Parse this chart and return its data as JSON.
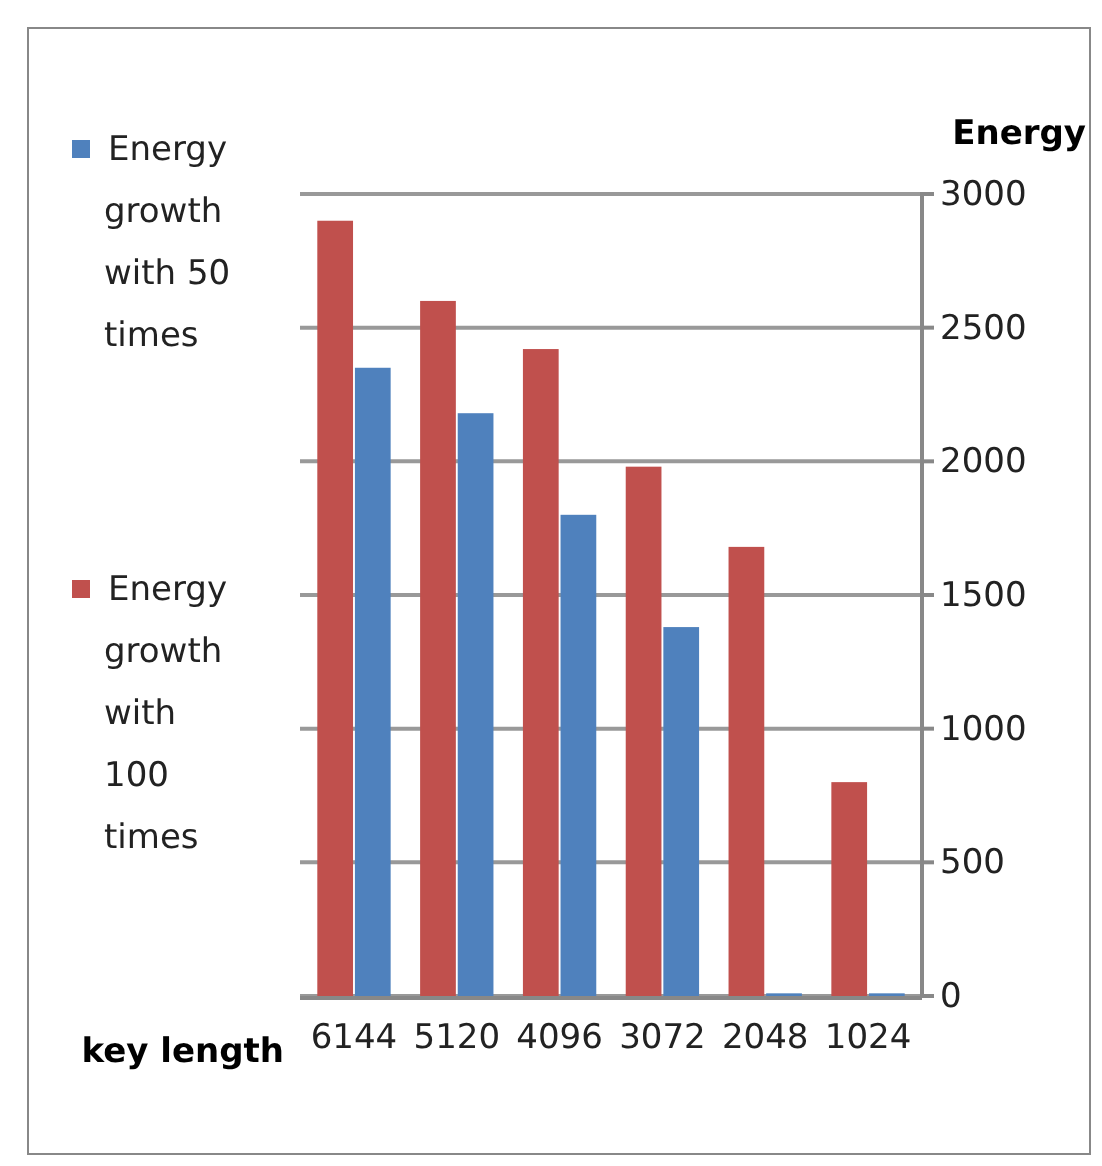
{
  "chart_data": {
    "type": "bar",
    "xlabel": "key length",
    "ylabel": "Energy",
    "categories": [
      "6144",
      "5120",
      "4096",
      "3072",
      "2048",
      "1024"
    ],
    "series": [
      {
        "name": "Energy growth with 100 times",
        "color": "#c0504d",
        "values": [
          2900,
          2600,
          2420,
          1980,
          1680,
          800
        ]
      },
      {
        "name": "Energy growth with 50 times",
        "color": "#4f81bd",
        "values": [
          2350,
          2180,
          1800,
          1380,
          10,
          10
        ]
      }
    ],
    "ylim": [
      0,
      3000
    ],
    "yticks": [
      0,
      500,
      1000,
      1500,
      2000,
      2500,
      3000
    ],
    "grid": "y",
    "legend": "left"
  }
}
